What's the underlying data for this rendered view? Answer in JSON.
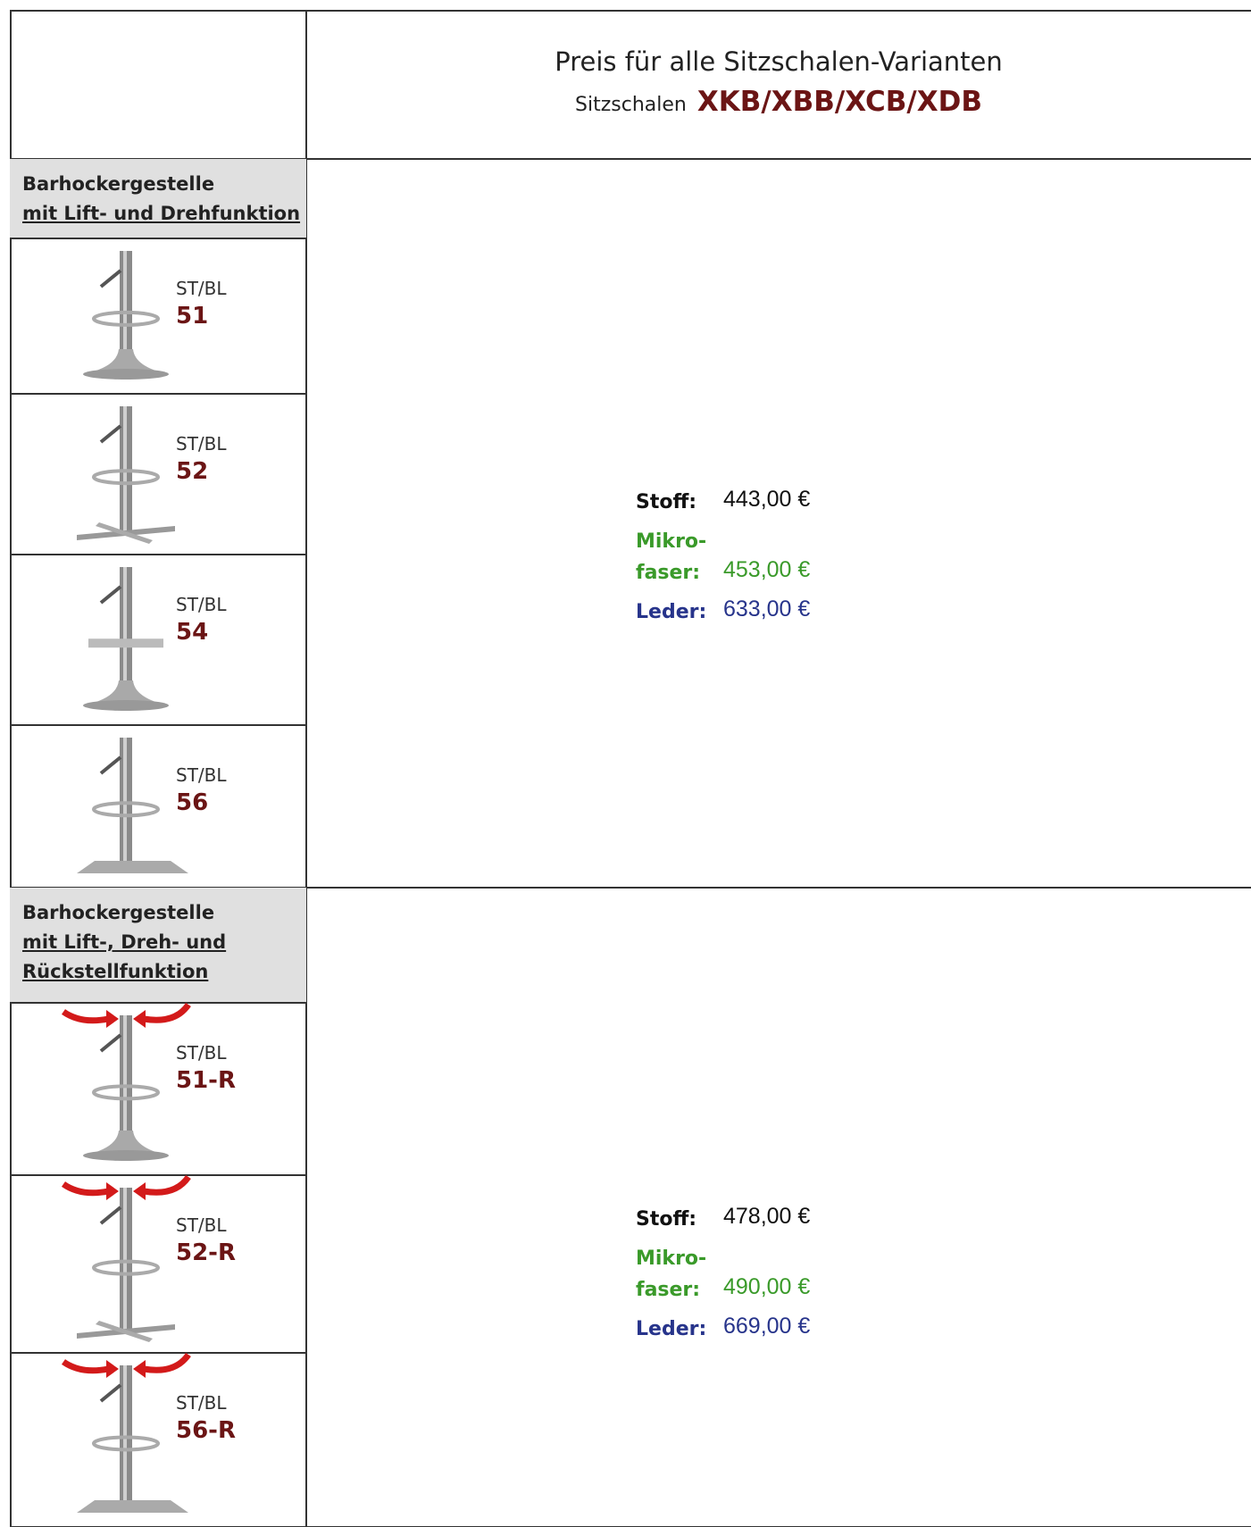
{
  "header": {
    "title": "Preis für alle Sitzschalen-Varianten",
    "subtitle_label": "Sitzschalen",
    "models": "XKB/XBB/XCB/XDB"
  },
  "sections": [
    {
      "heading": [
        "Barhockergestelle",
        "mit Lift- und Drehfunktion"
      ],
      "items": [
        {
          "prefix": "ST/BL",
          "code": "51"
        },
        {
          "prefix": "ST/BL",
          "code": "52"
        },
        {
          "prefix": "ST/BL",
          "code": "54"
        },
        {
          "prefix": "ST/BL",
          "code": "56"
        }
      ],
      "prices": [
        {
          "label": "Stoff:",
          "value": "443,00 €"
        },
        {
          "label": "Mikro-\nfaser:",
          "value": "453,00 €"
        },
        {
          "label": "Leder:",
          "value": "633,00 €"
        }
      ]
    },
    {
      "heading": [
        "Barhockergestelle",
        "mit Lift-, Dreh-  und",
        "Rückstellfunktion"
      ],
      "items": [
        {
          "prefix": "ST/BL",
          "code": "51-R"
        },
        {
          "prefix": "ST/BL",
          "code": "52-R"
        },
        {
          "prefix": "ST/BL",
          "code": "56-R"
        }
      ],
      "prices": [
        {
          "label": "Stoff:",
          "value": "478,00 €"
        },
        {
          "label": "Mikro-\nfaser:",
          "value": "490,00 €"
        },
        {
          "label": "Leder:",
          "value": "669,00 €"
        }
      ]
    }
  ]
}
